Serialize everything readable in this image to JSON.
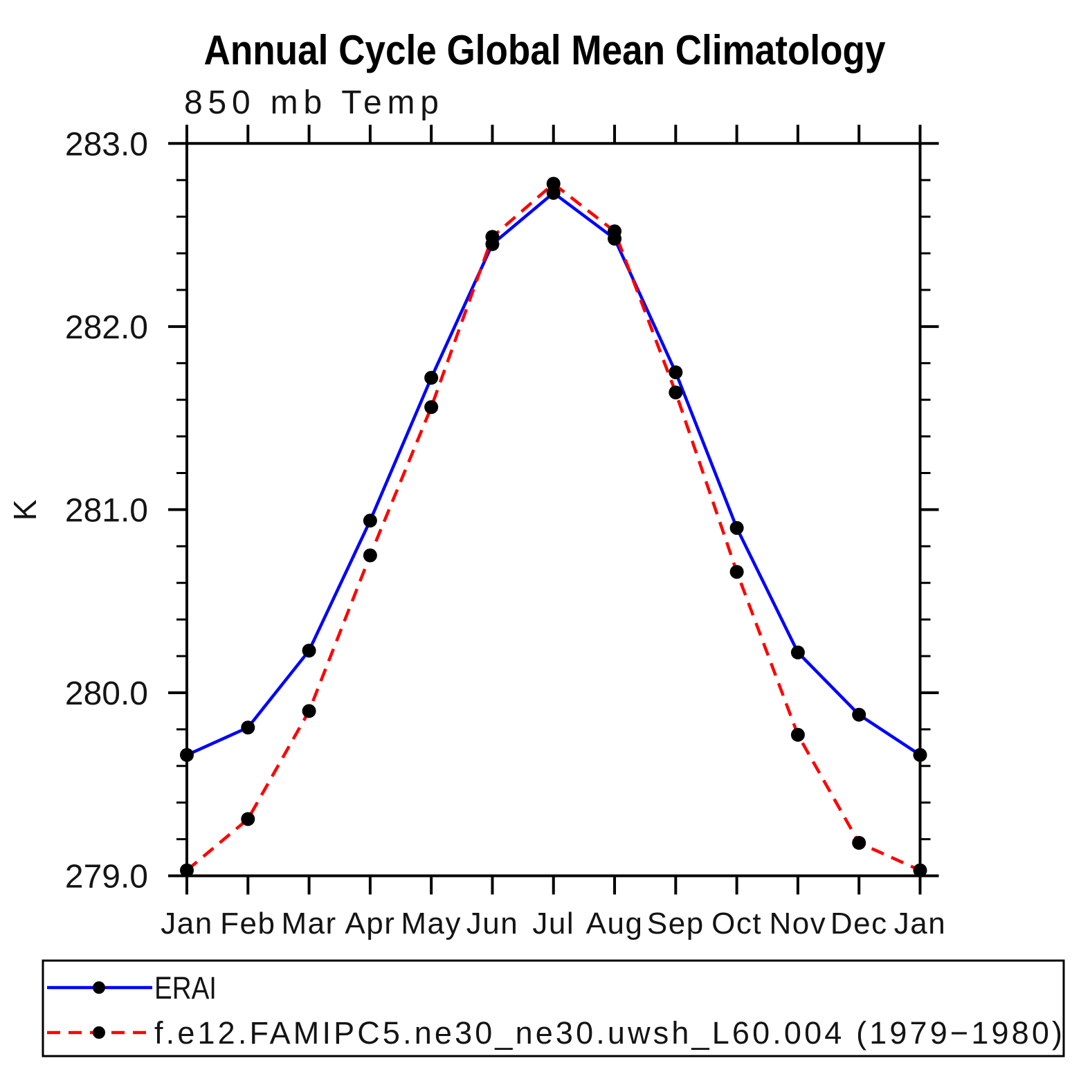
{
  "page": {
    "background": "#ffffff"
  },
  "chart_data": {
    "type": "line",
    "title": "Annual Cycle Global Mean Climatology",
    "subtitle": "850 mb Temp",
    "ylabel": "K",
    "xlabel": "",
    "x_categories": [
      "Jan",
      "Feb",
      "Mar",
      "Apr",
      "May",
      "Jun",
      "Jul",
      "Aug",
      "Sep",
      "Oct",
      "Nov",
      "Dec",
      "Jan"
    ],
    "ylim": [
      279.0,
      283.0
    ],
    "y_ticks": [
      283.0,
      282.0,
      281.0,
      280.0,
      279.0
    ],
    "y_tick_labels": [
      "283.0",
      "282.0",
      "281.0",
      "280.0",
      "279.0"
    ],
    "y_minor_step": 0.2,
    "grid": false,
    "legend_position": "bottom-left-box",
    "marker": "filled-circle",
    "marker_color": "#000000",
    "series": [
      {
        "name": "ERAI",
        "color": "#0000ff",
        "style": "solid",
        "values": [
          279.66,
          279.81,
          280.23,
          280.94,
          281.72,
          282.45,
          282.73,
          282.48,
          281.75,
          280.9,
          280.22,
          279.88,
          279.66
        ]
      },
      {
        "name": "f.e12.FAMIPC5.ne30_ne30.uwsh_L60.004 (1979−1980)",
        "color": "#ff0000",
        "style": "dashed",
        "values": [
          279.03,
          279.31,
          279.9,
          280.75,
          281.56,
          282.49,
          282.78,
          282.52,
          281.64,
          280.66,
          279.77,
          279.18,
          279.03
        ]
      }
    ]
  }
}
